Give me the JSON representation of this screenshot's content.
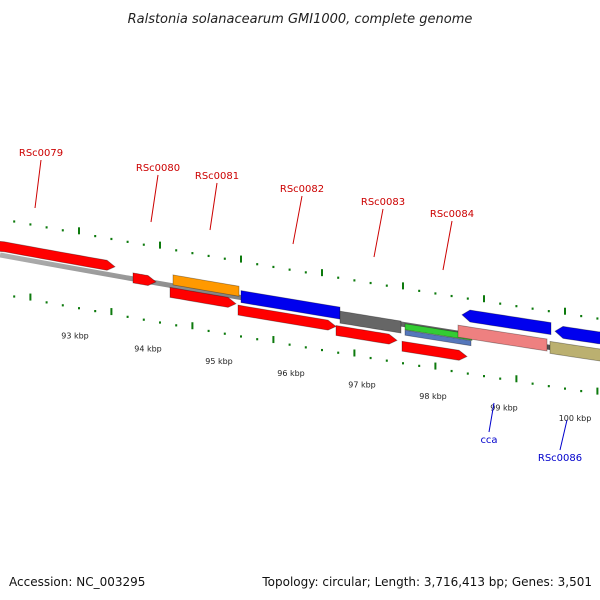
{
  "title": "Ralstonia solanacearum GMI1000, complete genome",
  "footer": {
    "accession": "Accession: NC_003295",
    "summary": "Topology: circular; Length: 3,716,413 bp; Genes: 3,501"
  },
  "colors": {
    "background": "#ffffff",
    "backbone": "#808080",
    "tick": "#0d7a0d",
    "plus_label": "#cc0000",
    "minus_label": "#0000cc",
    "leader": "#000000"
  },
  "scale": {
    "unit": "kbp",
    "labels": [
      "93 kbp",
      "94 kbp",
      "95 kbp",
      "96 kbp",
      "97 kbp",
      "98 kbp",
      "99 kbp",
      "100 kbp"
    ]
  },
  "gene_labels": [
    {
      "text": "RSc0079",
      "strand": "plus"
    },
    {
      "text": "RSc0080",
      "strand": "plus"
    },
    {
      "text": "RSc0081",
      "strand": "plus"
    },
    {
      "text": "RSc0082",
      "strand": "plus"
    },
    {
      "text": "RSc0083",
      "strand": "plus"
    },
    {
      "text": "RSc0084",
      "strand": "plus"
    },
    {
      "text": "cca",
      "strand": "minus"
    },
    {
      "text": "RSc0086",
      "strand": "minus"
    }
  ],
  "feature_colors": {
    "cds": "#ff0000",
    "orange": "#ff9900",
    "blue": "#0000ee",
    "gray": "#666666",
    "green": "#33cc33",
    "steel": "#5577bb",
    "pink": "#ee8080",
    "olive": "#bbb070"
  }
}
